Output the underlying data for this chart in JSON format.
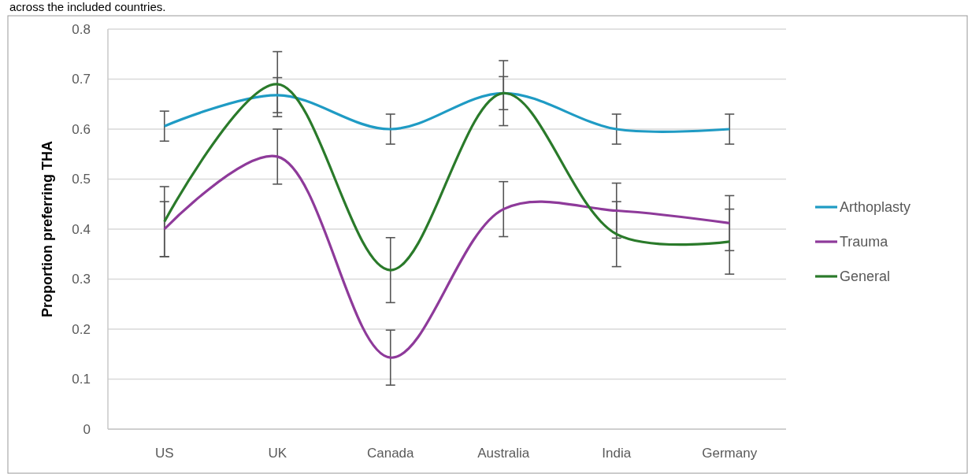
{
  "chart_data": {
    "type": "line",
    "annotations": [
      "across the included countries."
    ],
    "ylabel": "Proportion preferring THA",
    "categories": [
      "US",
      "UK",
      "Canada",
      "Australia",
      "India",
      "Germany"
    ],
    "series": [
      {
        "name": "Arthoplasty",
        "color": "#1f9bc4",
        "values": [
          0.606,
          0.668,
          0.6,
          0.672,
          0.6,
          0.6
        ],
        "errors": [
          0.03,
          0.035,
          0.03,
          0.033,
          0.03,
          0.03
        ]
      },
      {
        "name": "Trauma",
        "color": "#8e3a9a",
        "values": [
          0.4,
          0.545,
          0.143,
          0.44,
          0.437,
          0.412
        ],
        "errors": [
          0.055,
          0.055,
          0.055,
          0.055,
          0.055,
          0.055
        ]
      },
      {
        "name": "General",
        "color": "#2a7a2a",
        "values": [
          0.415,
          0.69,
          0.318,
          0.672,
          0.39,
          0.375
        ],
        "errors": [
          0.07,
          0.065,
          0.065,
          0.065,
          0.065,
          0.065
        ]
      }
    ],
    "ylim": [
      0,
      0.8
    ],
    "yticks": [
      0,
      {
        "value": 0.1,
        "label": "0.1"
      },
      {
        "value": 0.2,
        "label": "0.2"
      },
      {
        "value": 0.3,
        "label": "0.3"
      },
      {
        "value": 0.4,
        "label": "0.4"
      },
      {
        "value": 0.5,
        "label": "0.5"
      },
      {
        "value": 0.6,
        "label": "0.6"
      },
      {
        "value": 0.7,
        "label": "0.7"
      },
      {
        "value": 0.8,
        "label": "0.8"
      }
    ],
    "grid": "y",
    "legend": "right",
    "marker": "none",
    "line_style": "solid"
  }
}
